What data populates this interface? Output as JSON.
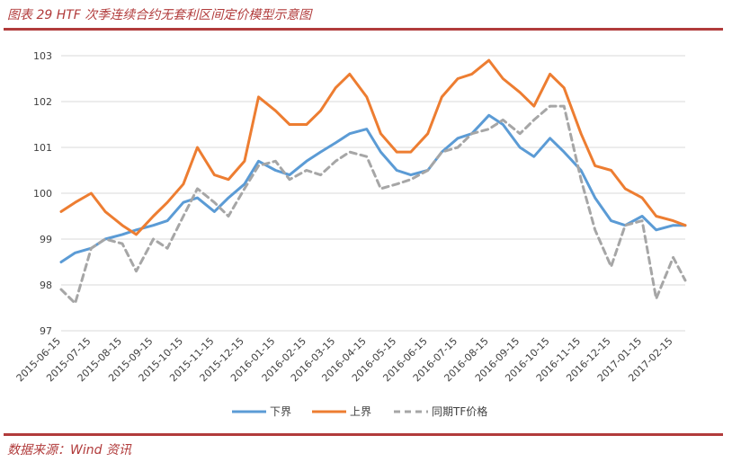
{
  "caption": "图表 29 HTF 次季连续合约无套利区间定价模型示意图",
  "source": "数据来源：Wind 资讯",
  "chart_data": {
    "type": "line",
    "title": "",
    "xlabel": "",
    "ylabel": "",
    "ylim": [
      97,
      103
    ],
    "yticks": [
      97,
      98,
      99,
      100,
      101,
      102,
      103
    ],
    "grid": "horizontal",
    "legend": "bottom",
    "xticks": [
      "2015-06-15",
      "2015-07-15",
      "2015-08-15",
      "2015-09-15",
      "2015-10-15",
      "2015-11-15",
      "2015-12-15",
      "2016-01-15",
      "2016-02-15",
      "2016-03-15",
      "2016-04-15",
      "2016-05-15",
      "2016-06-15",
      "2016-07-15",
      "2016-08-15",
      "2016-09-15",
      "2016-10-15",
      "2016-11-15",
      "2016-12-15",
      "2017-01-15",
      "2017-02-15"
    ],
    "x": [
      "2015-06-15",
      "2015-06-29",
      "2015-07-15",
      "2015-07-29",
      "2015-08-15",
      "2015-08-29",
      "2015-09-15",
      "2015-09-29",
      "2015-10-15",
      "2015-10-29",
      "2015-11-15",
      "2015-11-29",
      "2015-12-15",
      "2015-12-29",
      "2016-01-15",
      "2016-01-29",
      "2016-02-15",
      "2016-02-29",
      "2016-03-15",
      "2016-03-29",
      "2016-04-15",
      "2016-04-29",
      "2016-05-15",
      "2016-05-29",
      "2016-06-15",
      "2016-06-29",
      "2016-07-15",
      "2016-07-29",
      "2016-08-15",
      "2016-08-29",
      "2016-09-15",
      "2016-09-29",
      "2016-10-15",
      "2016-10-29",
      "2016-11-15",
      "2016-11-29",
      "2016-12-15",
      "2016-12-29",
      "2017-01-15",
      "2017-01-29",
      "2017-02-15",
      "2017-02-27"
    ],
    "series": [
      {
        "name": "下界",
        "color": "#5b9bd5",
        "dash": "solid",
        "values": [
          98.5,
          98.7,
          98.8,
          99.0,
          99.1,
          99.2,
          99.3,
          99.4,
          99.8,
          99.9,
          99.6,
          99.9,
          100.2,
          100.7,
          100.5,
          100.4,
          100.7,
          100.9,
          101.1,
          101.3,
          101.4,
          100.9,
          100.5,
          100.4,
          100.5,
          100.9,
          101.2,
          101.3,
          101.7,
          101.5,
          101.0,
          100.8,
          101.2,
          100.9,
          100.5,
          99.9,
          99.4,
          99.3,
          99.5,
          99.2,
          99.3,
          99.3
        ]
      },
      {
        "name": "上界",
        "color": "#ed7d31",
        "dash": "solid",
        "values": [
          99.6,
          99.8,
          100.0,
          99.6,
          99.3,
          99.1,
          99.5,
          99.8,
          100.2,
          101.0,
          100.4,
          100.3,
          100.7,
          102.1,
          101.8,
          101.5,
          101.5,
          101.8,
          102.3,
          102.6,
          102.1,
          101.3,
          100.9,
          100.9,
          101.3,
          102.1,
          102.5,
          102.6,
          102.9,
          102.5,
          102.2,
          101.9,
          102.6,
          102.3,
          101.3,
          100.6,
          100.5,
          100.1,
          99.9,
          99.5,
          99.4,
          99.3
        ]
      },
      {
        "name": "同期TF价格",
        "color": "#a6a6a6",
        "dash": "dashed",
        "values": [
          97.9,
          97.6,
          98.8,
          99.0,
          98.9,
          98.3,
          99.0,
          98.8,
          99.5,
          100.1,
          99.8,
          99.5,
          100.1,
          100.6,
          100.7,
          100.3,
          100.5,
          100.4,
          100.7,
          100.9,
          100.8,
          100.1,
          100.2,
          100.3,
          100.5,
          100.9,
          101.0,
          101.3,
          101.4,
          101.6,
          101.3,
          101.6,
          101.9,
          101.9,
          100.3,
          99.2,
          98.4,
          99.3,
          99.4,
          97.7,
          98.6,
          98.1
        ]
      }
    ]
  }
}
